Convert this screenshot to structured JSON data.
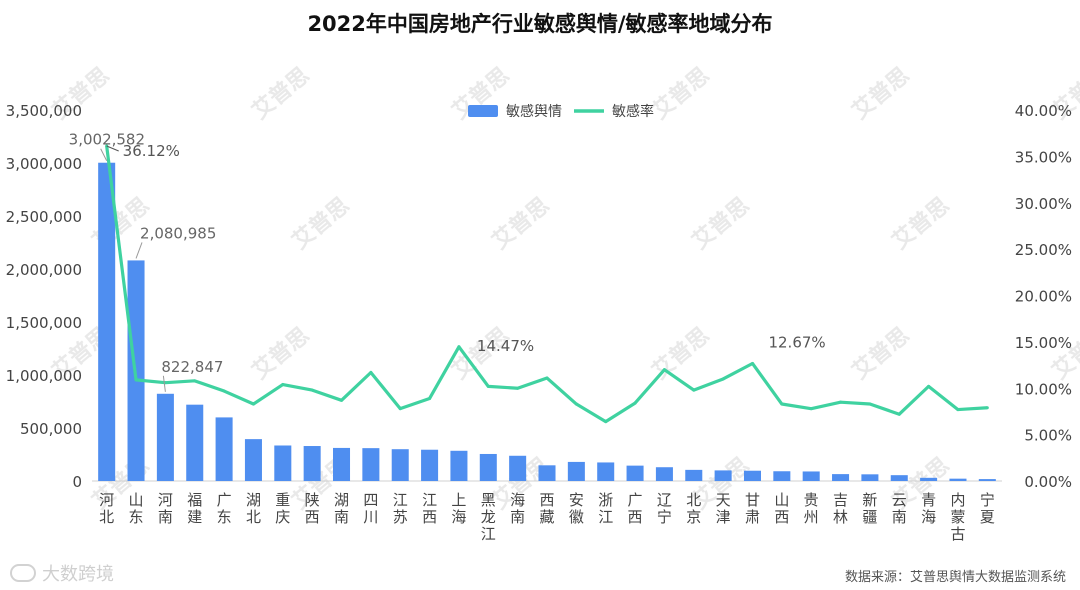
{
  "title": "2022年中国房地产行业敏感舆情/敏感率地域分布",
  "source": "数据来源：艾普思舆情大数据监测系统",
  "brand": "大数跨境",
  "watermark": "艾普思",
  "colors": {
    "bar": "#4f8ef0",
    "line": "#3fd2a0",
    "axis": "#444444",
    "grid": "#e6e6e6",
    "watermark": "#e9e9e9"
  },
  "chart_data": {
    "type": "bar",
    "categories": [
      "河北",
      "山东",
      "河南",
      "福建",
      "广东",
      "湖北",
      "重庆",
      "陕西",
      "湖南",
      "四川",
      "江苏",
      "江西",
      "上海",
      "黑龙江",
      "海南",
      "西藏",
      "安徽",
      "浙江",
      "广西",
      "辽宁",
      "北京",
      "天津",
      "甘肃",
      "山西",
      "贵州",
      "吉林",
      "新疆",
      "云南",
      "青海",
      "内蒙古",
      "宁夏"
    ],
    "series": [
      {
        "name": "敏感舆情",
        "type": "bar",
        "axis": "left",
        "values": [
          3002582,
          2080985,
          822847,
          720000,
          600000,
          395000,
          335000,
          330000,
          312000,
          310000,
          300000,
          295000,
          285000,
          255000,
          238000,
          148000,
          180000,
          175000,
          145000,
          130000,
          105000,
          100000,
          97000,
          92000,
          90000,
          65000,
          63000,
          55000,
          30000,
          22000,
          18000
        ]
      },
      {
        "name": "敏感率",
        "type": "line",
        "axis": "right",
        "values": [
          36.12,
          10.9,
          10.6,
          10.8,
          9.7,
          8.3,
          10.4,
          9.8,
          8.7,
          11.7,
          7.8,
          8.9,
          14.47,
          10.2,
          10.0,
          11.1,
          8.3,
          6.4,
          8.4,
          12.0,
          9.8,
          11.0,
          12.67,
          8.3,
          7.8,
          8.5,
          8.3,
          7.2,
          10.2,
          7.7,
          7.9
        ]
      }
    ],
    "bar_labels": [
      {
        "index": 0,
        "text": "3,002,582"
      },
      {
        "index": 1,
        "text": "2,080,985"
      },
      {
        "index": 2,
        "text": "822,847"
      }
    ],
    "line_labels": [
      {
        "index": 0,
        "text": "36.12%"
      },
      {
        "index": 12,
        "text": "14.47%"
      },
      {
        "index": 22,
        "text": "12.67%"
      }
    ],
    "y_left": {
      "min": 0,
      "max": 3500000,
      "ticks": [
        "0",
        "500,000",
        "1,000,000",
        "1,500,000",
        "2,000,000",
        "2,500,000",
        "3,000,000",
        "3,500,000"
      ]
    },
    "y_right": {
      "min": 0,
      "max": 40,
      "ticks": [
        "0.00%",
        "5.00%",
        "10.00%",
        "15.00%",
        "20.00%",
        "25.00%",
        "30.00%",
        "35.00%",
        "40.00%"
      ]
    },
    "legend_position": "top-center",
    "grid": false
  }
}
